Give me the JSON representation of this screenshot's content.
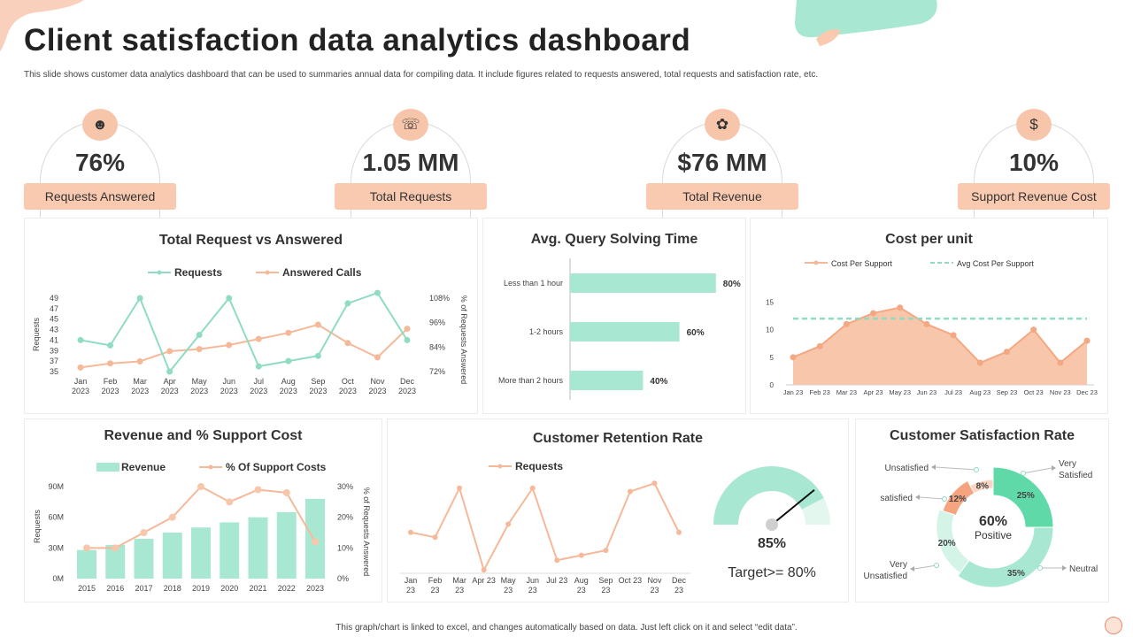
{
  "header": {
    "title": "Client satisfaction data analytics dashboard",
    "subtitle": "This slide shows customer data analytics dashboard that can be used to summaries annual data for compiling data. It include figures related to requests answered, total requests and satisfaction rate, etc.",
    "footer": "This graph/chart is linked to excel, and changes automatically based on data. Just left click on it and select “edit data”."
  },
  "kpis": [
    {
      "value": "76%",
      "label": "Requests Answered",
      "icon": "person-icon"
    },
    {
      "value": "1.05 MM",
      "label": "Total Requests",
      "icon": "phone-request-icon"
    },
    {
      "value": "$76 MM",
      "label": "Total Revenue",
      "icon": "hand-coins-icon"
    },
    {
      "value": "10%",
      "label": "Support Revenue  Cost",
      "icon": "money-bag-icon"
    }
  ],
  "colors": {
    "mint": "#a8e8d2",
    "peach": "#f8c6aa",
    "mint_line": "#8fdcc2",
    "peach_line": "#f5b99a",
    "accent_orange": "#f4a07c",
    "green_dark": "#5cd6a6"
  },
  "chart_data": [
    {
      "id": "requests_vs_answered",
      "type": "line",
      "title": "Total Request vs Answered",
      "categories": [
        "Jan 2023",
        "Feb 2023",
        "Mar 2023",
        "Apr 2023",
        "May 2023",
        "Jun 2023",
        "Jul 2023",
        "Aug 2023",
        "Sep 2023",
        "Oct 2023",
        "Nov 2023",
        "Dec 2023"
      ],
      "series": [
        {
          "name": "Requests",
          "axis": "left",
          "values": [
            41,
            40,
            49,
            35,
            42,
            49,
            36,
            37,
            38,
            48,
            50,
            41
          ]
        },
        {
          "name": "Answered Calls",
          "axis": "right",
          "values": [
            74,
            76,
            77,
            82,
            83,
            85,
            88,
            91,
            95,
            86,
            79,
            93
          ]
        }
      ],
      "ylabel": "Requests",
      "y2label": "% of Requests Answered",
      "y_ticks": [
        "35",
        "37",
        "39",
        "41",
        "43",
        "45",
        "47",
        "49"
      ],
      "y2_ticks": [
        "72%",
        "84%",
        "96%",
        "108%"
      ],
      "ylim": [
        35,
        49
      ],
      "y2lim": [
        72,
        108
      ]
    },
    {
      "id": "query_solving_time",
      "type": "bar",
      "orientation": "horizontal",
      "title": "Avg. Query Solving Time",
      "categories": [
        "Less than 1 hour",
        "1-2 hours",
        "More than 2 hours"
      ],
      "values": [
        80,
        60,
        40
      ],
      "value_labels": [
        "80%",
        "60%",
        "40%"
      ],
      "xlim": [
        0,
        100
      ]
    },
    {
      "id": "cost_per_unit",
      "type": "area",
      "title": "Cost per unit",
      "categories": [
        "Jan 23",
        "Feb 23",
        "Mar 23",
        "Apr 23",
        "May 23",
        "Jun 23",
        "Jul 23",
        "Aug 23",
        "Sep 23",
        "Oct 23",
        "Nov 23",
        "Dec 23"
      ],
      "series": [
        {
          "name": "Cost Per Support",
          "values": [
            5,
            7,
            11,
            13,
            14,
            11,
            9,
            4,
            6,
            10,
            4,
            8
          ]
        },
        {
          "name": "Avg Cost Per Support",
          "values": [
            12,
            12,
            12,
            12,
            12,
            12,
            12,
            12,
            12,
            12,
            12,
            12
          ]
        }
      ],
      "y_ticks": [
        "0",
        "5",
        "10",
        "15"
      ],
      "ylim": [
        0,
        17
      ]
    },
    {
      "id": "revenue_support_cost",
      "type": "bar",
      "title": "Revenue and % Support Cost",
      "categories": [
        "2015",
        "2016",
        "2017",
        "2018",
        "2019",
        "2020",
        "2021",
        "2022",
        "2023"
      ],
      "series": [
        {
          "name": "Revenue",
          "axis": "left",
          "values": [
            28,
            33,
            39,
            45,
            50,
            55,
            60,
            65,
            78
          ]
        },
        {
          "name": "% Of Support Costs",
          "axis": "right",
          "values": [
            10,
            10,
            15,
            20,
            30,
            25,
            29,
            28,
            12
          ]
        }
      ],
      "ylabel": "Requests",
      "y2label": "% of Requests Answered",
      "y_ticks": [
        "0M",
        "30M",
        "60M",
        "90M"
      ],
      "y2_ticks": [
        "0%",
        "10%",
        "20%",
        "30%"
      ],
      "ylim": [
        0,
        90
      ],
      "y2lim": [
        0,
        30
      ]
    },
    {
      "id": "customer_retention",
      "type": "line",
      "title": "Customer Retention Rate",
      "categories": [
        "Jan 23",
        "Feb 23",
        "Mar 23",
        "Apr 23",
        "May 23",
        "Jun 23",
        "Jul 23",
        "Aug 23",
        "Sep 23",
        "Oct 23",
        "Nov 23",
        "Dec 23"
      ],
      "series": [
        {
          "name": "Requests",
          "values": [
            45,
            42,
            72,
            22,
            50,
            72,
            28,
            31,
            34,
            70,
            75,
            45
          ]
        }
      ],
      "ylim": [
        20,
        80
      ]
    },
    {
      "id": "retention_gauge",
      "type": "gauge",
      "value": 85,
      "value_label": "85%",
      "target_label": "Target>= 80%"
    },
    {
      "id": "customer_satisfaction",
      "type": "pie",
      "title": "Customer Satisfaction Rate",
      "center_value": "60%",
      "center_label": "Positive",
      "slices": [
        {
          "name": "Very Satisfied",
          "value": 25,
          "label": "25%"
        },
        {
          "name": "Neutral",
          "value": 35,
          "label": "35%"
        },
        {
          "name": "Very Unsatisfied",
          "value": 20,
          "label": "20%"
        },
        {
          "name": "satisfied",
          "value": 12,
          "label": "12%"
        },
        {
          "name": "Unsatisfied",
          "value": 8,
          "label": "8%"
        }
      ]
    }
  ]
}
